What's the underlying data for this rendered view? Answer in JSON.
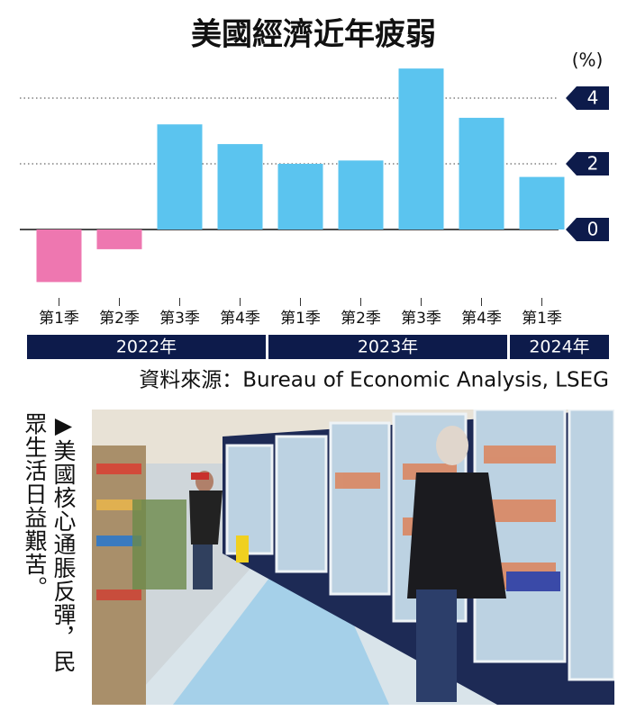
{
  "chart_data": {
    "type": "bar",
    "title": "美國經濟近年疲弱",
    "unit": "(%)",
    "categories": [
      "第1季",
      "第2季",
      "第3季",
      "第4季",
      "第1季",
      "第2季",
      "第3季",
      "第4季",
      "第1季"
    ],
    "values": [
      -1.6,
      -0.6,
      3.2,
      2.6,
      2.0,
      2.1,
      4.9,
      3.4,
      1.6
    ],
    "color_positive": "#5bc4ef",
    "color_negative": "#ee77b0",
    "x_groups": [
      {
        "label": "2022年",
        "span": 4
      },
      {
        "label": "2023年",
        "span": 4
      },
      {
        "label": "2024年",
        "span": 1
      }
    ],
    "ylim": [
      -2,
      5
    ],
    "yticks": [
      0,
      2,
      4
    ],
    "grid": true,
    "y_axis_side": "right",
    "source": "資料來源：Bureau of Economic Analysis, LSEG"
  },
  "caption": [
    "▶美國核心通脹反彈，民",
    "眾生活日益艱苦。"
  ]
}
